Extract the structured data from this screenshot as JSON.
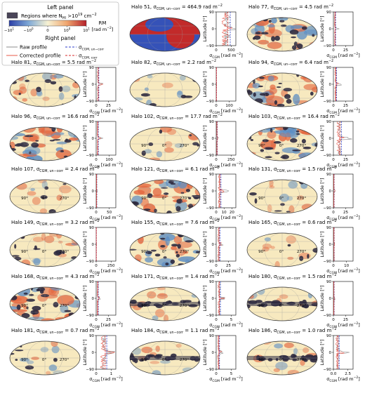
{
  "legend": {
    "left_title": "Left panel",
    "regions_label": "Regions where N",
    "regions_sub": "HI",
    "regions_rest": " >10",
    "regions_exp": "19",
    "regions_unit": " cm",
    "regions_unit_exp": "−2",
    "cbar_ticks": [
      "−10",
      "−10",
      "0",
      "10",
      "10"
    ],
    "cbar_exps": [
      "1",
      "0",
      "",
      "0",
      "1"
    ],
    "rm_label": "RM",
    "rm_unit": "[rad m",
    "rm_unit_exp": "−2",
    "rm_unit_end": "]",
    "right_title": "Right panel",
    "raw_profile": "Raw profile",
    "corrected_profile": "Corrected profile",
    "sigma_uncorr": "σ",
    "sigma_uncorr_sub": "CGM, un−corr",
    "sigma_corr": "σ",
    "sigma_corr_sub": "CGM, corr"
  },
  "colors": {
    "raw": "#8c8c8c",
    "corrected": "#e8584a",
    "uncorr_line": "#2c3ec9",
    "corr_line": "#d7282b",
    "nhi_mask": "#2e2a3f",
    "map_neutral": "#f7e9bf",
    "map_warm": "#e3663f",
    "map_cool": "#5b8dc4",
    "map_deep_red": "#c22a2a",
    "map_deep_blue": "#3552b8"
  },
  "axis_text": {
    "latitude_label": "Latitude [°]",
    "sigma_axis_sym": "σ",
    "sigma_axis_sub": "CGM",
    "sigma_axis_unit": " [rad m",
    "sigma_axis_unit_exp": "−2",
    "sigma_axis_unit_end": "]",
    "map_lon_labels": [
      "90°",
      "0°",
      "270°"
    ]
  },
  "chart_data": [
    {
      "type": "line",
      "halo": "51",
      "title_prefix": "Halo 51, σ",
      "title_sub": "CGM, un−corr",
      "title_value": " = 464.9 rad m",
      "title_exp": "−2",
      "sigma_uncorr": 464.9,
      "sigma_corr": 380,
      "xticks": [
        "0",
        "500"
      ],
      "xlim": [
        0,
        650
      ],
      "yticks": [
        "90",
        "0",
        "−90"
      ],
      "ylim": [
        -90,
        90
      ],
      "map_style": "dipole",
      "show_lon_labels": false
    },
    {
      "type": "line",
      "halo": "77",
      "title_prefix": "Halo 77, σ",
      "title_sub": "CGM, un−corr",
      "title_value": " = 4.5 rad m",
      "title_exp": "−2",
      "sigma_uncorr": 4.5,
      "sigma_corr": 3.4,
      "xticks": [
        "0",
        "25"
      ],
      "xlim": [
        0,
        40
      ],
      "yticks": [
        "90",
        "0",
        "−90"
      ],
      "ylim": [
        -90,
        90
      ],
      "map_style": "patchy",
      "show_lon_labels": false
    },
    {
      "type": "line",
      "halo": "81",
      "title_prefix": "Halo 81, σ",
      "title_sub": "CGM, un−corr",
      "title_value": " = 5.5 rad m",
      "title_exp": "−2",
      "sigma_uncorr": 5.5,
      "sigma_corr": 4.6,
      "xticks": [
        "0",
        "25"
      ],
      "xlim": [
        0,
        40
      ],
      "yticks": [
        "90",
        "0",
        "−90"
      ],
      "ylim": [
        -90,
        90
      ],
      "map_style": "warm",
      "show_lon_labels": false
    },
    {
      "type": "line",
      "halo": "82",
      "title_prefix": "Halo 82, σ",
      "title_sub": "CGM, un−corr",
      "title_value": " = 2.2 rad m",
      "title_exp": "−2",
      "sigma_uncorr": 2.2,
      "sigma_corr": 1.8,
      "xticks": [
        "0",
        "100"
      ],
      "xlim": [
        0,
        150
      ],
      "yticks": [
        "90",
        "0",
        "−90"
      ],
      "ylim": [
        -90,
        90
      ],
      "map_style": "light",
      "show_lon_labels": false
    },
    {
      "type": "line",
      "halo": "94",
      "title_prefix": "Halo 94, σ",
      "title_sub": "CGM, un−corr",
      "title_value": " = 6.4 rad m",
      "title_exp": "−2",
      "sigma_uncorr": 6.4,
      "sigma_corr": 5.1,
      "xticks": [
        "0",
        "25"
      ],
      "xlim": [
        0,
        40
      ],
      "yticks": [
        "90",
        "0",
        "−90"
      ],
      "ylim": [
        -90,
        90
      ],
      "map_style": "patchy",
      "show_lon_labels": false
    },
    {
      "type": "line",
      "halo": "96",
      "title_prefix": "Halo 96, σ",
      "title_sub": "CGM, un−corr",
      "title_value": " = 16.6 rad m",
      "title_exp": "−2",
      "sigma_uncorr": 16.6,
      "sigma_corr": 12.8,
      "xticks": [
        "0",
        "100"
      ],
      "xlim": [
        0,
        150
      ],
      "yticks": [
        "90",
        "0",
        "−90"
      ],
      "ylim": [
        -90,
        90
      ],
      "map_style": "strong",
      "show_lon_labels": false
    },
    {
      "type": "line",
      "halo": "102",
      "title_prefix": "Halo 102, σ",
      "title_sub": "CGM, un−corr",
      "title_value": " = 17.7 rad m",
      "title_exp": "−2",
      "sigma_uncorr": 17.7,
      "sigma_corr": 14.1,
      "xticks": [
        "0",
        "250"
      ],
      "xlim": [
        0,
        330
      ],
      "yticks": [
        "90",
        "0",
        "−90"
      ],
      "ylim": [
        -90,
        90
      ],
      "map_style": "light",
      "show_lon_labels": true
    },
    {
      "type": "line",
      "halo": "103",
      "title_prefix": "Halo 103, σ",
      "title_sub": "CGM, un−corr",
      "title_value": " = 16.4 rad m",
      "title_exp": "−2",
      "sigma_uncorr": 16.4,
      "sigma_corr": 13.0,
      "xticks": [
        "0",
        "25"
      ],
      "xlim": [
        0,
        40
      ],
      "yticks": [
        "90",
        "0",
        "−90"
      ],
      "ylim": [
        -90,
        90
      ],
      "map_style": "strong",
      "show_lon_labels": true
    },
    {
      "type": "line",
      "halo": "107",
      "title_prefix": "Halo 107, σ",
      "title_sub": "CGM, un−corr",
      "title_value": " = 2.4 rad m",
      "title_exp": "−2",
      "sigma_uncorr": 2.4,
      "sigma_corr": 1.9,
      "xticks": [
        "0",
        "50"
      ],
      "xlim": [
        0,
        75
      ],
      "yticks": [
        "90",
        "0",
        "−90"
      ],
      "ylim": [
        -90,
        90
      ],
      "map_style": "light",
      "show_lon_labels": true
    },
    {
      "type": "line",
      "halo": "121",
      "title_prefix": "Halo 121, σ",
      "title_sub": "CGM, un−corr",
      "title_value": " = 6.1 rad m",
      "title_exp": "−2",
      "sigma_uncorr": 6.1,
      "sigma_corr": 4.7,
      "xticks": [
        "0",
        "10",
        "20"
      ],
      "xlim": [
        0,
        25
      ],
      "yticks": [
        "90",
        "0",
        "−90"
      ],
      "ylim": [
        -90,
        90
      ],
      "map_style": "patchy",
      "show_lon_labels": true
    },
    {
      "type": "line",
      "halo": "131",
      "title_prefix": "Halo 131, σ",
      "title_sub": "CGM, un−corr",
      "title_value": " = 1.5 rad m",
      "title_exp": "−2",
      "sigma_uncorr": 1.5,
      "sigma_corr": 1.2,
      "xticks": [
        "0",
        "25"
      ],
      "xlim": [
        0,
        40
      ],
      "yticks": [
        "90",
        "0",
        "−90"
      ],
      "ylim": [
        -90,
        90
      ],
      "map_style": "light",
      "show_lon_labels": true
    },
    {
      "type": "line",
      "halo": "149",
      "title_prefix": "Halo 149, σ",
      "title_sub": "CGM, un−corr",
      "title_value": " = 3.2 rad m",
      "title_exp": "−2",
      "sigma_uncorr": 3.2,
      "sigma_corr": 2.5,
      "xticks": [
        "0",
        "250"
      ],
      "xlim": [
        0,
        330
      ],
      "yticks": [
        "90",
        "0",
        "−90"
      ],
      "ylim": [
        -90,
        90
      ],
      "map_style": "warm",
      "show_lon_labels": true
    },
    {
      "type": "line",
      "halo": "155",
      "title_prefix": "Halo 155, σ",
      "title_sub": "CGM, un−corr",
      "title_value": " = 7.6 rad m",
      "title_exp": "−2",
      "sigma_uncorr": 7.6,
      "sigma_corr": 6.0,
      "xticks": [
        "0",
        "25"
      ],
      "xlim": [
        0,
        40
      ],
      "yticks": [
        "90",
        "0",
        "−90"
      ],
      "ylim": [
        -90,
        90
      ],
      "map_style": "patchy",
      "show_lon_labels": true
    },
    {
      "type": "line",
      "halo": "165",
      "title_prefix": "Halo 165, σ",
      "title_sub": "CGM, un−corr",
      "title_value": " = 0.6 rad m",
      "title_exp": "−2",
      "sigma_uncorr": 0.6,
      "sigma_corr": 0.5,
      "xticks": [
        "0",
        "10"
      ],
      "xlim": [
        0,
        15
      ],
      "yticks": [
        "90",
        "0",
        "−90"
      ],
      "ylim": [
        -90,
        90
      ],
      "map_style": "light",
      "show_lon_labels": true
    },
    {
      "type": "line",
      "halo": "168",
      "title_prefix": "Halo 168, σ",
      "title_sub": "CGM, un−corr",
      "title_value": " = 4.3 rad m",
      "title_exp": "−2",
      "sigma_uncorr": 4.3,
      "sigma_corr": 3.4,
      "xticks": [
        "0",
        "25"
      ],
      "xlim": [
        0,
        40
      ],
      "yticks": [
        "90",
        "0",
        "−90"
      ],
      "ylim": [
        -90,
        90
      ],
      "map_style": "strong",
      "show_lon_labels": true
    },
    {
      "type": "line",
      "halo": "171",
      "title_prefix": "Halo 171, σ",
      "title_sub": "CGM, un−corr",
      "title_value": " = 1.4 rad m",
      "title_exp": "−2",
      "sigma_uncorr": 1.4,
      "sigma_corr": 1.0,
      "xticks": [
        "0",
        "5"
      ],
      "xlim": [
        0,
        6.5
      ],
      "yticks": [
        "90",
        "0",
        "−90"
      ],
      "ylim": [
        -90,
        90
      ],
      "map_style": "band",
      "show_lon_labels": true
    },
    {
      "type": "line",
      "halo": "180",
      "title_prefix": "Halo 180, σ",
      "title_sub": "CGM, un−corr",
      "title_value": " = 1.5 rad m",
      "title_exp": "−2",
      "sigma_uncorr": 1.5,
      "sigma_corr": 1.1,
      "xticks": [
        "0",
        "25"
      ],
      "xlim": [
        0,
        40
      ],
      "yticks": [
        "90",
        "0",
        "−90"
      ],
      "ylim": [
        -90,
        90
      ],
      "map_style": "band",
      "show_lon_labels": true
    },
    {
      "type": "line",
      "halo": "181",
      "title_prefix": "Halo 181, σ",
      "title_sub": "CGM, un−corr",
      "title_value": " = 0.7 rad m",
      "title_exp": "−2",
      "sigma_uncorr": 0.7,
      "sigma_corr": 0.6,
      "xticks": [
        "0",
        "1"
      ],
      "xlim": [
        0,
        1.3
      ],
      "yticks": [
        "90",
        "0",
        "−90"
      ],
      "ylim": [
        -90,
        90
      ],
      "map_style": "light",
      "show_lon_labels": true
    },
    {
      "type": "line",
      "halo": "184",
      "title_prefix": "Halo 184, σ",
      "title_sub": "CGM, un−corr",
      "title_value": " = 1.1 rad m",
      "title_exp": "−2",
      "sigma_uncorr": 1.1,
      "sigma_corr": 0.9,
      "xticks": [
        "0",
        "5"
      ],
      "xlim": [
        0,
        6.5
      ],
      "yticks": [
        "90",
        "0",
        "−90"
      ],
      "ylim": [
        -90,
        90
      ],
      "map_style": "band",
      "show_lon_labels": true
    },
    {
      "type": "line",
      "halo": "186",
      "title_prefix": "Halo 186, σ",
      "title_sub": "CGM, un−corr",
      "title_value": " = 1.0 rad m",
      "title_exp": "−2",
      "sigma_uncorr": 1.0,
      "sigma_corr": 0.8,
      "xticks": [
        "0.0",
        "2.5"
      ],
      "xlim": [
        0,
        3.4
      ],
      "yticks": [
        "90",
        "0",
        "−90"
      ],
      "ylim": [
        -90,
        90
      ],
      "map_style": "band",
      "show_lon_labels": true
    }
  ]
}
